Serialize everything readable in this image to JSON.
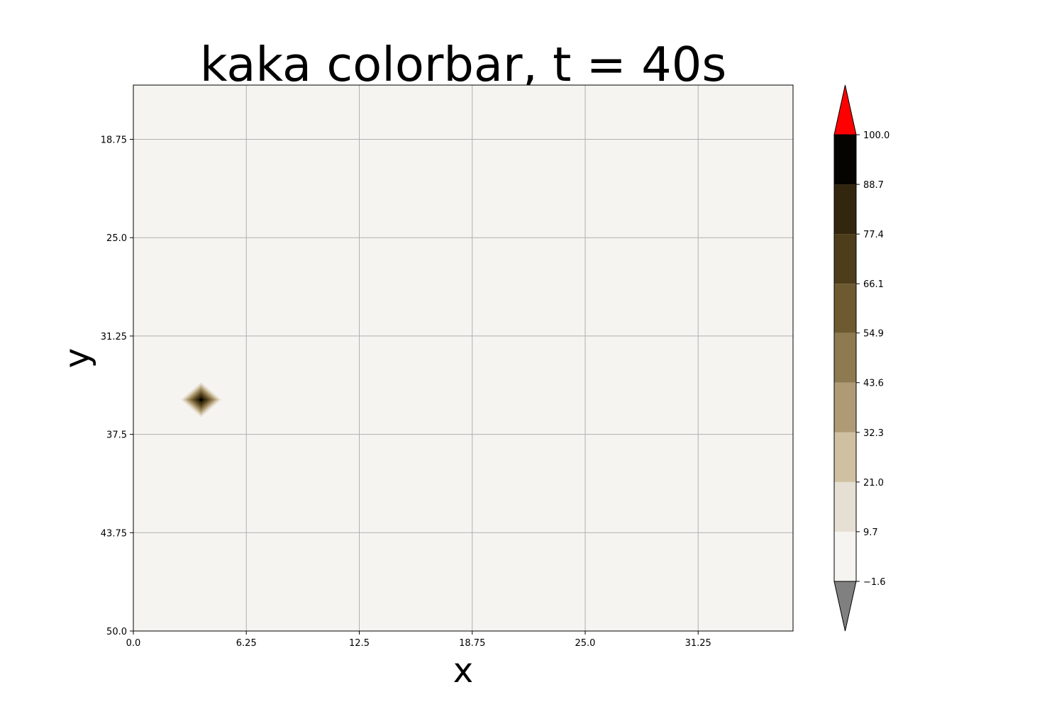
{
  "chart_data": {
    "type": "heatmap",
    "title": "kaka colorbar, t = 40s",
    "xlabel": "x",
    "ylabel": "y",
    "xlim": [
      0,
      36.5
    ],
    "ylim": [
      15.3,
      50
    ],
    "y_inverted": true,
    "grid": true,
    "x_ticks": [
      0.0,
      6.25,
      12.5,
      18.75,
      25.0,
      31.25
    ],
    "x_tick_labels": [
      "0.0",
      "6.25",
      "12.5",
      "18.75",
      "25.0",
      "31.25"
    ],
    "y_ticks": [
      18.75,
      25.0,
      31.25,
      37.5,
      43.75,
      50.0
    ],
    "y_tick_labels": [
      "18.75",
      "25.0",
      "31.25",
      "37.5",
      "43.75",
      "50.0"
    ],
    "background_level_color": "#f5f4f0",
    "peak": {
      "x": 3.75,
      "y": 35.3,
      "value": 100,
      "half_width": 1.1
    },
    "colorbar": {
      "levels": [
        -1.6,
        9.7,
        21.0,
        32.3,
        43.6,
        54.9,
        66.1,
        77.4,
        88.7,
        100.0
      ],
      "tick_labels": [
        "−1.6",
        "9.7",
        "21.0",
        "32.3",
        "43.6",
        "54.9",
        "66.1",
        "77.4",
        "88.7",
        "100.0"
      ],
      "band_colors": [
        "#f5f4f0",
        "#e6dfd3",
        "#cfc0a2",
        "#ae9b76",
        "#8d7a51",
        "#6d5a31",
        "#4d3d1a",
        "#32260e",
        "#050400"
      ],
      "extend_min_color": "#808080",
      "extend_max_color": "#ff0000"
    }
  }
}
